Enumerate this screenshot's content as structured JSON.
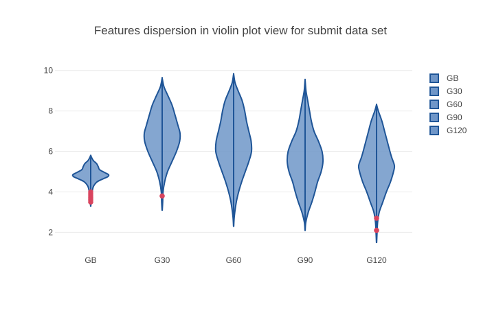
{
  "chart_data": {
    "type": "violin",
    "title": "Features dispersion in violin plot view for submit data set",
    "xlabel": "",
    "ylabel": "",
    "categories": [
      "GB",
      "G30",
      "G60",
      "G90",
      "G120"
    ],
    "y_ticks": [
      2,
      4,
      6,
      8,
      10
    ],
    "ylim": [
      1.2,
      10.5
    ],
    "grid": true,
    "legend_position": "right",
    "colors": {
      "fill": "#6f96c8",
      "line": "#1f5597",
      "outlier": "#d9445e"
    },
    "series": [
      {
        "name": "GB",
        "min": 3.3,
        "max": 5.8,
        "profile": [
          [
            3.3,
            0.005
          ],
          [
            3.6,
            0.03
          ],
          [
            3.9,
            0.07
          ],
          [
            4.1,
            0.1
          ],
          [
            4.3,
            0.17
          ],
          [
            4.5,
            0.36
          ],
          [
            4.65,
            0.7
          ],
          [
            4.75,
            0.95
          ],
          [
            4.85,
            1.0
          ],
          [
            4.95,
            0.8
          ],
          [
            5.1,
            0.5
          ],
          [
            5.25,
            0.42
          ],
          [
            5.4,
            0.33
          ],
          [
            5.55,
            0.15
          ],
          [
            5.7,
            0.05
          ],
          [
            5.8,
            0.005
          ]
        ],
        "outliers": [
          3.5,
          3.6,
          3.7,
          3.8,
          3.9,
          4.0
        ]
      },
      {
        "name": "G30",
        "min": 3.1,
        "max": 9.6,
        "profile": [
          [
            3.1,
            0.005
          ],
          [
            3.5,
            0.03
          ],
          [
            4.0,
            0.05
          ],
          [
            4.5,
            0.14
          ],
          [
            5.0,
            0.3
          ],
          [
            5.5,
            0.55
          ],
          [
            6.0,
            0.8
          ],
          [
            6.5,
            0.98
          ],
          [
            6.9,
            1.0
          ],
          [
            7.3,
            0.88
          ],
          [
            7.8,
            0.72
          ],
          [
            8.3,
            0.55
          ],
          [
            8.8,
            0.3
          ],
          [
            9.2,
            0.1
          ],
          [
            9.6,
            0.005
          ]
        ],
        "outliers": [
          3.8
        ]
      },
      {
        "name": "G60",
        "min": 2.3,
        "max": 9.8,
        "profile": [
          [
            2.3,
            0.005
          ],
          [
            2.8,
            0.04
          ],
          [
            3.5,
            0.15
          ],
          [
            4.0,
            0.28
          ],
          [
            4.5,
            0.45
          ],
          [
            5.0,
            0.65
          ],
          [
            5.5,
            0.85
          ],
          [
            6.0,
            1.0
          ],
          [
            6.5,
            0.98
          ],
          [
            7.0,
            0.85
          ],
          [
            7.5,
            0.72
          ],
          [
            8.0,
            0.62
          ],
          [
            8.5,
            0.48
          ],
          [
            9.0,
            0.25
          ],
          [
            9.4,
            0.08
          ],
          [
            9.8,
            0.005
          ]
        ],
        "outliers": []
      },
      {
        "name": "G90",
        "min": 2.1,
        "max": 9.5,
        "profile": [
          [
            2.1,
            0.005
          ],
          [
            2.5,
            0.04
          ],
          [
            3.0,
            0.18
          ],
          [
            3.5,
            0.38
          ],
          [
            4.0,
            0.55
          ],
          [
            4.5,
            0.7
          ],
          [
            5.0,
            0.9
          ],
          [
            5.5,
            1.0
          ],
          [
            6.0,
            0.95
          ],
          [
            6.5,
            0.75
          ],
          [
            7.0,
            0.5
          ],
          [
            7.5,
            0.35
          ],
          [
            8.0,
            0.25
          ],
          [
            8.5,
            0.15
          ],
          [
            9.0,
            0.05
          ],
          [
            9.5,
            0.005
          ]
        ],
        "outliers": []
      },
      {
        "name": "G120",
        "min": 1.5,
        "max": 8.3,
        "profile": [
          [
            1.5,
            0.005
          ],
          [
            2.0,
            0.03
          ],
          [
            2.5,
            0.06
          ],
          [
            3.0,
            0.15
          ],
          [
            3.5,
            0.35
          ],
          [
            4.0,
            0.55
          ],
          [
            4.5,
            0.78
          ],
          [
            5.0,
            0.95
          ],
          [
            5.3,
            1.0
          ],
          [
            5.7,
            0.85
          ],
          [
            6.0,
            0.75
          ],
          [
            6.5,
            0.6
          ],
          [
            7.0,
            0.45
          ],
          [
            7.5,
            0.3
          ],
          [
            8.0,
            0.1
          ],
          [
            8.3,
            0.005
          ]
        ],
        "outliers": [
          2.7,
          2.1
        ]
      }
    ]
  }
}
